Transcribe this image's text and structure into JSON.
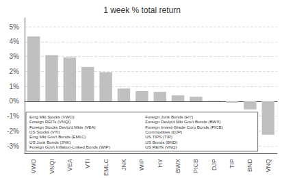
{
  "chart_data": {
    "type": "bar",
    "title": "1 week % total return",
    "categories": [
      "VWO",
      "VNQI",
      "VEA",
      "VTI",
      "EMLC",
      "JNK",
      "WIP",
      "HY",
      "BWX",
      "PICB",
      "DJP",
      "TIP",
      "BND",
      "VNQ"
    ],
    "values": [
      4.35,
      3.1,
      2.95,
      2.3,
      1.95,
      0.85,
      0.68,
      0.63,
      0.4,
      0.3,
      0.03,
      -0.1,
      -0.55,
      -2.25
    ],
    "color": "#c0c0c0",
    "ylim": [
      -3.5,
      5.6
    ],
    "yticks": [
      {
        "value": -3,
        "label": "-3%"
      },
      {
        "value": -2,
        "label": "-2%"
      },
      {
        "value": -1,
        "label": "-1%"
      },
      {
        "value": 0,
        "label": "0%"
      },
      {
        "value": 1,
        "label": "1%"
      },
      {
        "value": 2,
        "label": "2%"
      },
      {
        "value": 3,
        "label": "3%"
      },
      {
        "value": 4,
        "label": "4%"
      },
      {
        "value": 5,
        "label": "5%"
      }
    ],
    "grid": true,
    "annotations": [
      "Emg Mkt Stocks (VWO)",
      "Foreign REITs (VNQI)",
      "Foreign Stocks Devlp'd Mkts (VEA)",
      "US Stocks (VTI)",
      "Emg Mkt Gov't Bonds (EMLC)",
      "US Junk Bonds (JNK)",
      "Foreign Gov't Inflation-Linked Bonds (WIP)",
      "Foreign Junk Bonds (HY)",
      "Foreign Devlp'd Mkt Gov't Bonds (BWX)",
      "Foreign Invest-Grade Corp Bonds (PICB)",
      "Commodities (DJP)",
      "US TIPS (TIP)",
      "US Bonds (BND)",
      "US REITs (VNQ)"
    ]
  }
}
